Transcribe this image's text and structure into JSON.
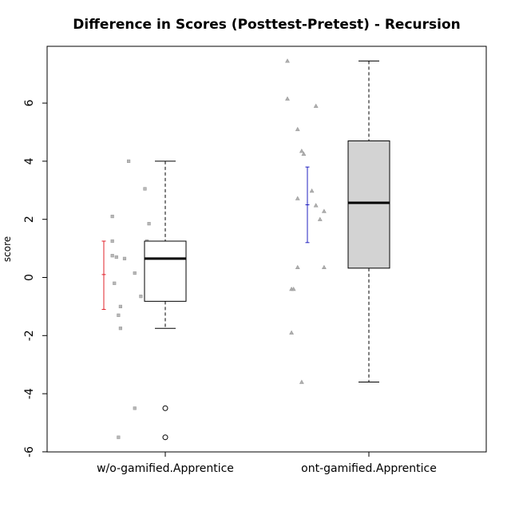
{
  "chart_data": {
    "type": "boxplot",
    "title": "Difference in Scores (Posttest-Pretest) - Recursion",
    "xlabel": "",
    "ylabel": "score",
    "ylim": [
      -6,
      7.8
    ],
    "y_ticks": [
      -6,
      -4,
      -2,
      0,
      2,
      4,
      6
    ],
    "categories": [
      "w/o-gamified.Apprentice",
      "ont-gamified.Apprentice"
    ],
    "grid": false,
    "boxes": [
      {
        "category": "w/o-gamified.Apprentice",
        "fill": "#ffffff",
        "whisker_low": -1.75,
        "q1": -0.82,
        "median": 0.65,
        "q3": 1.25,
        "whisker_high": 4.0,
        "outliers": [
          -4.5,
          -5.5
        ]
      },
      {
        "category": "ont-gamified.Apprentice",
        "fill": "#d3d3d3",
        "whisker_low": -3.6,
        "q1": 0.32,
        "median": 2.57,
        "q3": 4.7,
        "whisker_high": 7.45,
        "outliers": []
      }
    ],
    "error_bars": [
      {
        "category": "w/o-gamified.Apprentice",
        "mean": 0.1,
        "low": -1.1,
        "high": 1.25,
        "color": "#e0202a"
      },
      {
        "category": "ont-gamified.Apprentice",
        "mean": 2.5,
        "low": 1.2,
        "high": 3.8,
        "color": "#2020c0"
      }
    ],
    "jitter_points": [
      {
        "category": "w/o-gamified.Apprentice",
        "marker": "square",
        "points": [
          {
            "x": 0.77,
            "y": -5.5
          },
          {
            "x": 0.85,
            "y": -4.5
          },
          {
            "x": 0.82,
            "y": 4.0
          },
          {
            "x": 0.9,
            "y": 3.05
          },
          {
            "x": 0.74,
            "y": 2.1
          },
          {
            "x": 0.92,
            "y": 1.85
          },
          {
            "x": 0.74,
            "y": 1.25
          },
          {
            "x": 0.91,
            "y": 1.25
          },
          {
            "x": 0.74,
            "y": 0.75
          },
          {
            "x": 0.76,
            "y": 0.7
          },
          {
            "x": 0.8,
            "y": 0.65
          },
          {
            "x": 0.85,
            "y": 0.15
          },
          {
            "x": 0.75,
            "y": -0.2
          },
          {
            "x": 0.92,
            "y": -0.55
          },
          {
            "x": 0.88,
            "y": -0.65
          },
          {
            "x": 0.78,
            "y": -1.0
          },
          {
            "x": 0.77,
            "y": -1.3
          },
          {
            "x": 0.78,
            "y": -1.75
          }
        ]
      },
      {
        "category": "ont-gamified.Apprentice",
        "marker": "triangle",
        "points": [
          {
            "x": 1.6,
            "y": 7.45
          },
          {
            "x": 1.6,
            "y": 6.15
          },
          {
            "x": 1.74,
            "y": 5.9
          },
          {
            "x": 1.65,
            "y": 5.1
          },
          {
            "x": 1.67,
            "y": 4.35
          },
          {
            "x": 1.68,
            "y": 4.25
          },
          {
            "x": 1.72,
            "y": 2.98
          },
          {
            "x": 1.65,
            "y": 2.72
          },
          {
            "x": 1.74,
            "y": 2.48
          },
          {
            "x": 1.78,
            "y": 2.28
          },
          {
            "x": 1.76,
            "y": 2.0
          },
          {
            "x": 1.65,
            "y": 0.35
          },
          {
            "x": 1.78,
            "y": 0.35
          },
          {
            "x": 1.62,
            "y": -0.4
          },
          {
            "x": 1.63,
            "y": -0.4
          },
          {
            "x": 1.62,
            "y": -1.9
          },
          {
            "x": 1.67,
            "y": -3.6
          }
        ]
      }
    ]
  }
}
